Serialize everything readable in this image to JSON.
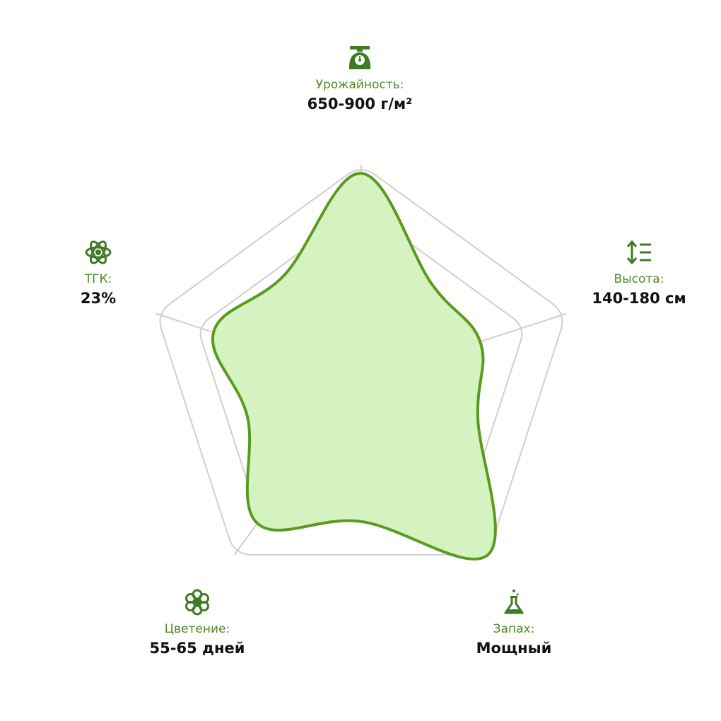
{
  "chart_data": {
    "type": "radar",
    "axes": [
      {
        "key": "yield",
        "label": "Урожайность:",
        "value_text": "650-900 г/м²",
        "icon": "scale-icon",
        "score": 0.96
      },
      {
        "key": "height",
        "label": "Высота:",
        "value_text": "140-180 см",
        "icon": "height-list-icon",
        "score": 0.58
      },
      {
        "key": "aroma",
        "label": "Запах:",
        "value_text": "Мощный",
        "icon": "flask-icon",
        "score": 1.0
      },
      {
        "key": "flowering",
        "label": "Цветение:",
        "value_text": "55-65 дней",
        "icon": "flower-icon",
        "score": 0.82
      },
      {
        "key": "thc",
        "label": "ТГК:",
        "value_text": "23%",
        "icon": "atom-icon",
        "score": 0.72
      }
    ],
    "grid_rings": 5,
    "grid": true,
    "colors": {
      "fill": "#d2f2bd",
      "stroke": "#5b9a1f",
      "grid": "#cfcfcf",
      "label": "#4d8a2a",
      "value": "#111111",
      "icon": "#3f7a24"
    }
  }
}
